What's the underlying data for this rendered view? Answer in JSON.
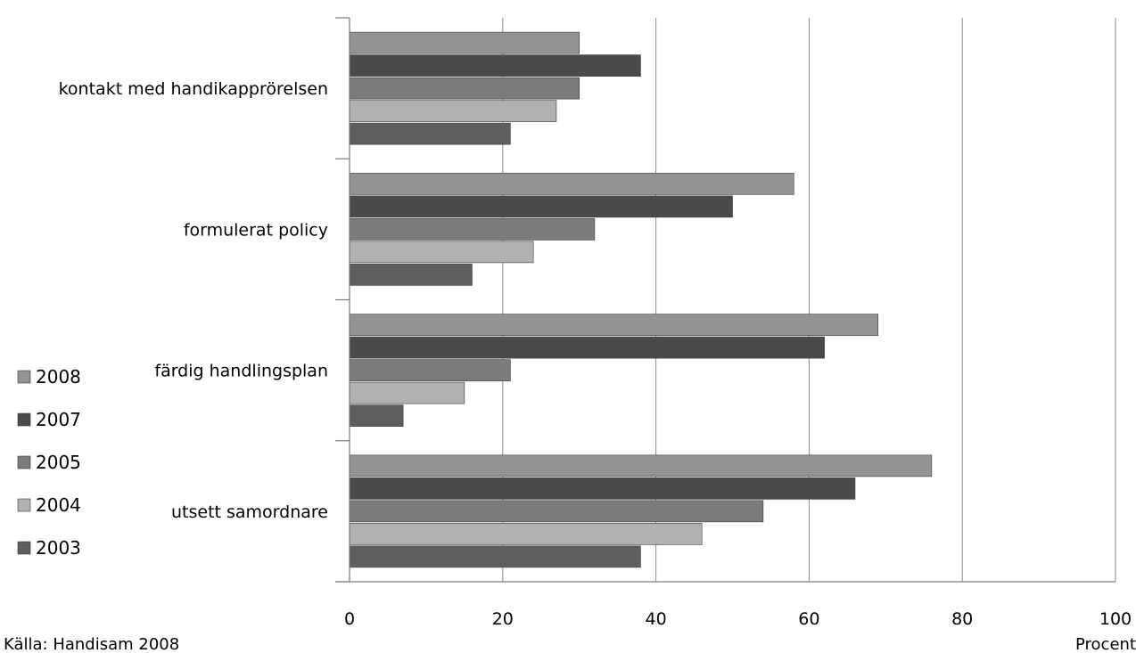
{
  "chart_data": {
    "type": "bar",
    "orientation": "horizontal",
    "categories": [
      "kontakt med handikapprörelsen",
      "formulerat policy",
      "färdig handlingsplan",
      "utsett samordnare"
    ],
    "series": [
      {
        "name": "2008",
        "color": "#939393",
        "values": [
          30,
          58,
          69,
          76
        ]
      },
      {
        "name": "2007",
        "color": "#4a4a4a",
        "values": [
          38,
          50,
          62,
          66
        ]
      },
      {
        "name": "2005",
        "color": "#7b7b7b",
        "values": [
          30,
          32,
          21,
          54
        ]
      },
      {
        "name": "2004",
        "color": "#b1b1b1",
        "values": [
          27,
          24,
          15,
          46
        ]
      },
      {
        "name": "2003",
        "color": "#5e5e5e",
        "values": [
          21,
          16,
          7,
          38
        ]
      }
    ],
    "xlim": [
      0,
      100
    ],
    "xticks": [
      0,
      20,
      40,
      60,
      80,
      100
    ],
    "xlabel": "Procent",
    "grid": true,
    "legend_position": "left",
    "legend_order": [
      "2008",
      "2007",
      "2005",
      "2004",
      "2003"
    ]
  },
  "source_label": "Källa: Handisam 2008"
}
